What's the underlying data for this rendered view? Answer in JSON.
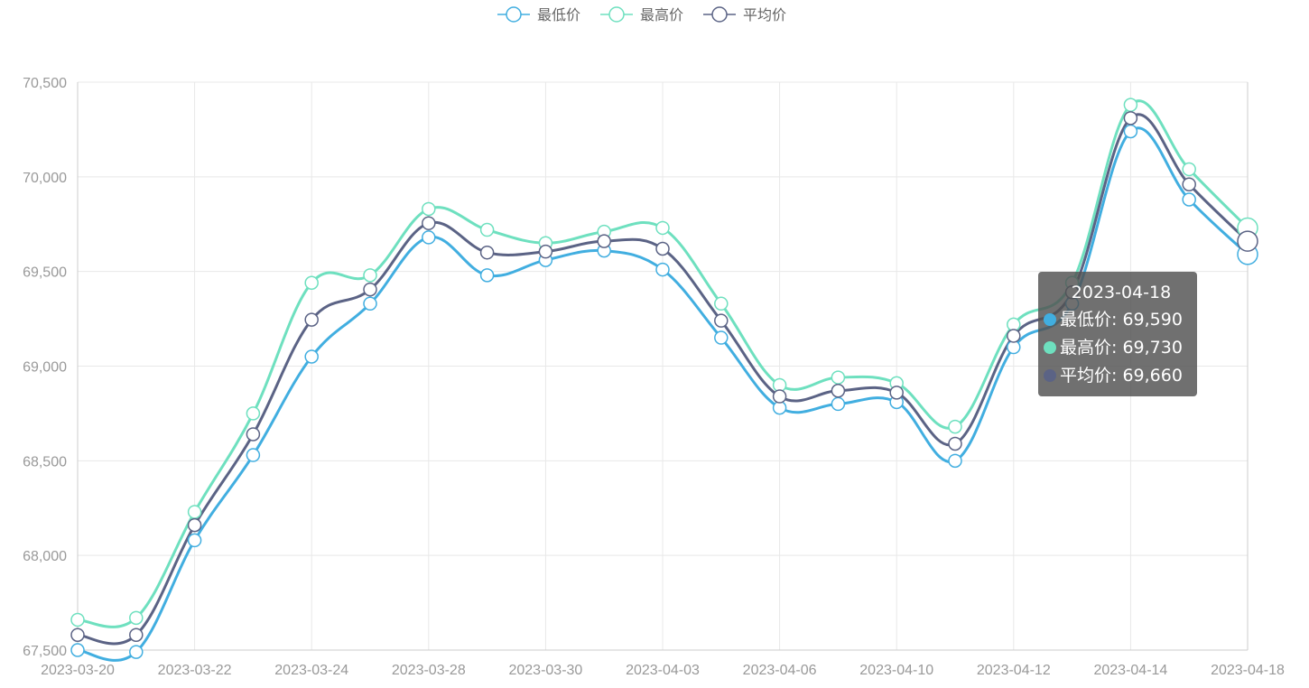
{
  "colors": {
    "min": "#41aee0",
    "max": "#6ee0bf",
    "avg": "#5b6385",
    "grid": "#e8e8e8",
    "axis": "#cccccc"
  },
  "legend": [
    {
      "label": "最低价",
      "color": "#41aee0"
    },
    {
      "label": "最高价",
      "color": "#6ee0bf"
    },
    {
      "label": "平均价",
      "color": "#5b6385"
    }
  ],
  "chart_data": {
    "type": "line",
    "smooth": true,
    "x": [
      "2023-03-20",
      "2023-03-21",
      "2023-03-22",
      "2023-03-23",
      "2023-03-24",
      "2023-03-25",
      "2023-03-28",
      "2023-03-29",
      "2023-03-30",
      "2023-03-31",
      "2023-04-03",
      "2023-04-04",
      "2023-04-06",
      "2023-04-07",
      "2023-04-10",
      "2023-04-11",
      "2023-04-12",
      "2023-04-13",
      "2023-04-14",
      "2023-04-17",
      "2023-04-18"
    ],
    "x_tick_labels": [
      "2023-03-20",
      "2023-03-22",
      "2023-03-24",
      "2023-03-28",
      "2023-03-30",
      "2023-04-03",
      "2023-04-06",
      "2023-04-10",
      "2023-04-12",
      "2023-04-14",
      "2023-04-18"
    ],
    "series": [
      {
        "name": "最低价",
        "color": "#41aee0",
        "values": [
          67500,
          67490,
          68080,
          68530,
          69050,
          69330,
          69680,
          69480,
          69560,
          69610,
          69510,
          69150,
          68780,
          68800,
          68810,
          68500,
          69100,
          69330,
          70240,
          69880,
          69590
        ]
      },
      {
        "name": "最高价",
        "color": "#6ee0bf",
        "values": [
          67660,
          67670,
          68230,
          68750,
          69440,
          69480,
          69830,
          69720,
          69650,
          69710,
          69730,
          69330,
          68900,
          68940,
          68910,
          68680,
          69220,
          69440,
          70380,
          70040,
          69730
        ]
      },
      {
        "name": "平均价",
        "color": "#5b6385",
        "values": [
          67580,
          67580,
          68160,
          68640,
          69245,
          69405,
          69755,
          69600,
          69605,
          69660,
          69620,
          69240,
          68840,
          68870,
          68860,
          68590,
          69160,
          69390,
          70310,
          69960,
          69660
        ]
      }
    ],
    "ylim": [
      67500,
      70500
    ],
    "yticks": [
      67500,
      68000,
      68500,
      69000,
      69500,
      70000,
      70500
    ],
    "ytick_labels": [
      "67,500",
      "68,000",
      "68,500",
      "69,000",
      "69,500",
      "70,000",
      "70,500"
    ],
    "grid": true,
    "legend_position": "top-center",
    "highlighted_index": 20
  },
  "tooltip": {
    "title": "2023-04-18",
    "rows": [
      {
        "label": "最低价: 69,590",
        "color": "#41aee0"
      },
      {
        "label": "最高价: 69,730",
        "color": "#6ee0bf"
      },
      {
        "label": "平均价: 69,660",
        "color": "#5b6385"
      }
    ]
  }
}
